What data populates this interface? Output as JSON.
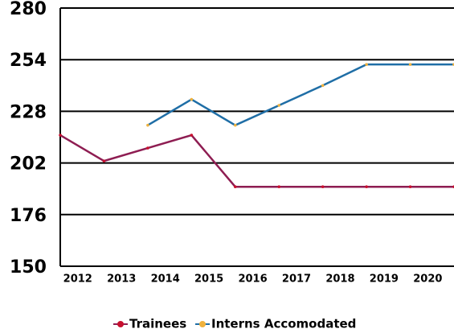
{
  "chart_data": {
    "type": "line",
    "categories": [
      "2012",
      "2013",
      "2014",
      "2015",
      "2016",
      "2017",
      "2018",
      "2019",
      "2020",
      null
    ],
    "series": [
      {
        "name": "Trainees",
        "color": "#8e1d52",
        "marker_color": "#c8102e",
        "values": [
          216,
          203,
          209.5,
          216,
          190,
          190,
          190,
          190,
          190,
          190
        ]
      },
      {
        "name": "Interns Accomodated",
        "color": "#1f6ea6",
        "marker_color": "#f0b23e",
        "values": [
          null,
          null,
          221,
          234,
          221,
          231,
          241,
          251.6,
          251.6,
          251.6
        ]
      }
    ],
    "ylim": [
      150,
      280
    ],
    "yticks": [
      150,
      176,
      202,
      228,
      254,
      280
    ],
    "grid": true,
    "legend": "bottom"
  }
}
